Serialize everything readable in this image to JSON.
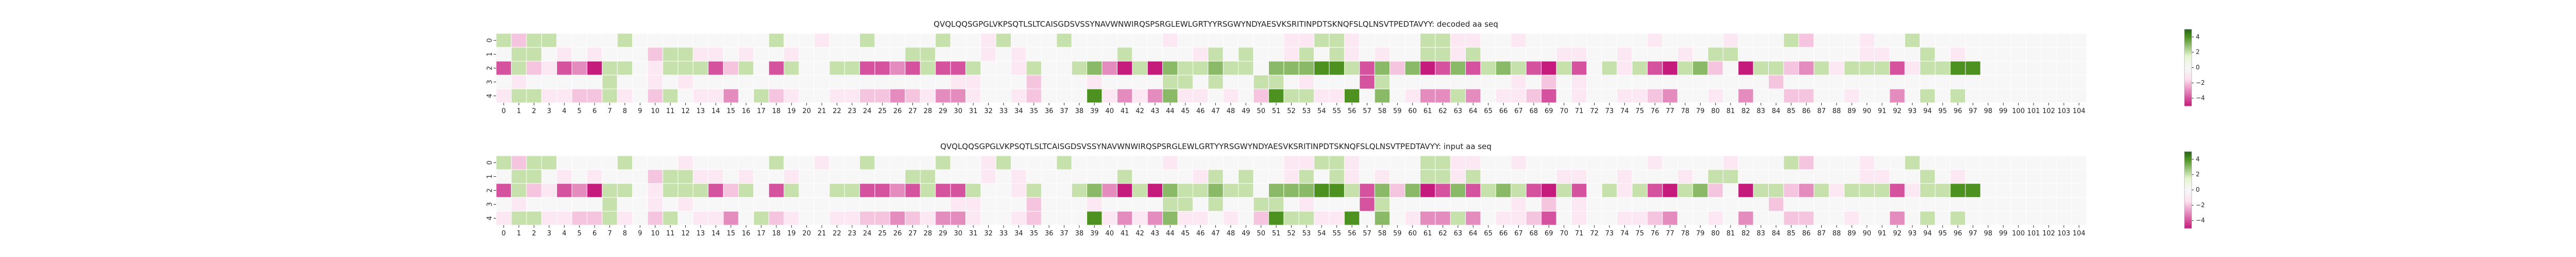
{
  "chart_data": [
    {
      "type": "heatmap",
      "title": "QVQLQQSGPGLVKPSQTLSLTCAISGDSVSSYNAVWNWIRQSPSRGLEWLGRTYYRSGWYNDYAESVKSRITINPDTSKNQFSLQLNSVTPEDTAVYY: decoded aa seq",
      "xlabel": "",
      "ylabel": "",
      "x_ticks": [
        "0",
        "1",
        "2",
        "3",
        "4",
        "5",
        "6",
        "7",
        "8",
        "9",
        "10",
        "11",
        "12",
        "13",
        "14",
        "15",
        "16",
        "17",
        "18",
        "19",
        "20",
        "21",
        "22",
        "23",
        "24",
        "25",
        "26",
        "27",
        "28",
        "29",
        "30",
        "31",
        "32",
        "33",
        "34",
        "35",
        "36",
        "37",
        "38",
        "39",
        "40",
        "41",
        "42",
        "43",
        "44",
        "45",
        "46",
        "47",
        "48",
        "49",
        "50",
        "51",
        "52",
        "53",
        "54",
        "55",
        "56",
        "57",
        "58",
        "59",
        "60",
        "61",
        "62",
        "63",
        "64",
        "65",
        "66",
        "67",
        "68",
        "69",
        "70",
        "71",
        "72",
        "73",
        "74",
        "75",
        "76",
        "77",
        "78",
        "79",
        "80",
        "81",
        "82",
        "83",
        "84",
        "85",
        "86",
        "87",
        "88",
        "89",
        "90",
        "91",
        "92",
        "93",
        "94",
        "95",
        "96",
        "97",
        "98",
        "99",
        "100",
        "101",
        "102",
        "103",
        "104"
      ],
      "y_ticks": [
        "0",
        "1",
        "2",
        "3",
        "4"
      ],
      "colorbar": {
        "ticks": [
          "4",
          "2",
          "0",
          "−2",
          "−4"
        ],
        "range": [
          -5,
          5
        ]
      },
      "rows": [
        [
          2,
          -2,
          2,
          2,
          0,
          0,
          0,
          0,
          2,
          0,
          0,
          0,
          0,
          0,
          0,
          0,
          0,
          0,
          2,
          0,
          0,
          -1,
          0,
          0,
          2,
          0,
          0,
          0,
          0,
          2,
          0,
          0,
          -1,
          2,
          0,
          0,
          0,
          2,
          0,
          0,
          0,
          0,
          0,
          0,
          -1,
          0,
          0,
          0,
          0,
          0,
          0,
          0,
          -1,
          -1,
          2,
          2,
          -1,
          0,
          0,
          0,
          0,
          2,
          2,
          -1,
          -1,
          0,
          0,
          -1,
          0,
          0,
          0,
          0,
          0,
          0,
          0,
          0,
          -1,
          0,
          0,
          0,
          0,
          -1,
          0,
          0,
          0,
          2,
          -2,
          0,
          0,
          0,
          -1,
          0,
          0,
          2,
          0,
          0,
          0,
          0,
          0,
          0,
          0,
          0,
          0,
          0,
          0
        ],
        [
          0,
          2,
          2,
          0,
          -1,
          0,
          -1,
          0,
          0,
          0,
          -2,
          2,
          2,
          -1,
          -1,
          0,
          -1,
          0,
          0,
          -1,
          0,
          0,
          0,
          0,
          0,
          0,
          0,
          2,
          2,
          0,
          0,
          0,
          -1,
          0,
          -1,
          0,
          0,
          0,
          0,
          0,
          0,
          2,
          0,
          0,
          0,
          0,
          -1,
          2,
          0,
          2,
          0,
          0,
          -1,
          2,
          0,
          2,
          -1,
          0,
          -1,
          0,
          0,
          2,
          2,
          -1,
          2,
          0,
          0,
          0,
          0,
          0,
          -1,
          -1,
          0,
          0,
          -1,
          0,
          0,
          0,
          -1,
          0,
          2,
          2,
          0,
          0,
          0,
          0,
          0,
          0,
          0,
          0,
          -1,
          -1,
          0,
          0,
          2,
          0,
          -1,
          0,
          0,
          0,
          0,
          0,
          0,
          0,
          0
        ],
        [
          -4,
          2,
          -2,
          -1,
          -4,
          -3,
          -5,
          2,
          2,
          0,
          -1,
          2,
          2,
          2,
          -4,
          -2,
          2,
          0,
          -4,
          2,
          0,
          0,
          2,
          2,
          -4,
          -4,
          -3,
          -4,
          2,
          -4,
          -4,
          2,
          0,
          0,
          -1,
          2,
          0,
          0,
          2,
          3,
          -3,
          -5,
          2,
          -5,
          3,
          2,
          2,
          3,
          2,
          2,
          0,
          3,
          3,
          3,
          4,
          4,
          2,
          -4,
          3,
          -2,
          3,
          -5,
          -4,
          3,
          -4,
          2,
          3,
          2,
          -4,
          -5,
          2,
          -4,
          0,
          2,
          -1,
          2,
          -4,
          -5,
          2,
          3,
          -2,
          0,
          -5,
          2,
          2,
          -2,
          -3,
          2,
          -1,
          2,
          2,
          2,
          -4,
          -1,
          2,
          2,
          4,
          4,
          0,
          0,
          0,
          0,
          0,
          0,
          0
        ],
        [
          0,
          -1,
          0,
          0,
          0,
          0,
          0,
          2,
          0,
          0,
          -1,
          0,
          -1,
          0,
          0,
          0,
          0,
          0,
          0,
          0,
          0,
          0,
          0,
          0,
          0,
          0,
          0,
          0,
          0,
          0,
          -1,
          -1,
          0,
          0,
          0,
          -2,
          0,
          0,
          0,
          -1,
          0,
          0,
          0,
          0,
          2,
          2,
          0,
          2,
          0,
          0,
          2,
          2,
          0,
          -1,
          0,
          0,
          0,
          -4,
          2,
          0,
          0,
          0,
          0,
          0,
          0,
          0,
          0,
          -1,
          0,
          -2,
          0,
          -1,
          0,
          0,
          0,
          0,
          0,
          0,
          0,
          0,
          0,
          0,
          0,
          0,
          -2,
          0,
          0,
          0,
          0,
          0,
          0,
          0,
          0,
          0,
          0,
          0,
          0,
          0,
          0,
          0,
          0,
          0,
          0,
          0,
          0
        ],
        [
          -1,
          2,
          2,
          -1,
          -1,
          -2,
          -2,
          2,
          -1,
          0,
          -2,
          2,
          0,
          -1,
          -1,
          -3,
          0,
          2,
          -2,
          -1,
          0,
          0,
          -1,
          -1,
          -2,
          -2,
          -3,
          -2,
          -1,
          -3,
          -3,
          -1,
          0,
          0,
          -1,
          -2,
          0,
          0,
          0,
          4,
          -1,
          -3,
          -1,
          -3,
          3,
          -1,
          -1,
          0,
          -1,
          0,
          -2,
          4,
          2,
          2,
          -1,
          -1,
          4,
          0,
          3,
          0,
          -1,
          -3,
          -3,
          2,
          -3,
          0,
          -1,
          -1,
          -2,
          -4,
          0,
          -1,
          0,
          0,
          -1,
          -1,
          -2,
          -3,
          0,
          0,
          -1,
          0,
          -3,
          0,
          0,
          -2,
          -2,
          0,
          0,
          -1,
          0,
          0,
          -3,
          0,
          2,
          0,
          2,
          0,
          0,
          0,
          0,
          0,
          0,
          0,
          0
        ]
      ]
    },
    {
      "type": "heatmap",
      "title": "QVQLQQSGPGLVKPSQTLSLTCAISGDSVSSYNAVWNWIRQSPSRGLEWLGRTYYRSGWYNDYAESVKSRITINPDTSKNQFSLQLNSVTPEDTAVYY: input aa seq",
      "xlabel": "",
      "ylabel": "",
      "x_ticks": [
        "0",
        "1",
        "2",
        "3",
        "4",
        "5",
        "6",
        "7",
        "8",
        "9",
        "10",
        "11",
        "12",
        "13",
        "14",
        "15",
        "16",
        "17",
        "18",
        "19",
        "20",
        "21",
        "22",
        "23",
        "24",
        "25",
        "26",
        "27",
        "28",
        "29",
        "30",
        "31",
        "32",
        "33",
        "34",
        "35",
        "36",
        "37",
        "38",
        "39",
        "40",
        "41",
        "42",
        "43",
        "44",
        "45",
        "46",
        "47",
        "48",
        "49",
        "50",
        "51",
        "52",
        "53",
        "54",
        "55",
        "56",
        "57",
        "58",
        "59",
        "60",
        "61",
        "62",
        "63",
        "64",
        "65",
        "66",
        "67",
        "68",
        "69",
        "70",
        "71",
        "72",
        "73",
        "74",
        "75",
        "76",
        "77",
        "78",
        "79",
        "80",
        "81",
        "82",
        "83",
        "84",
        "85",
        "86",
        "87",
        "88",
        "89",
        "90",
        "91",
        "92",
        "93",
        "94",
        "95",
        "96",
        "97",
        "98",
        "99",
        "100",
        "101",
        "102",
        "103",
        "104"
      ],
      "y_ticks": [
        "0",
        "1",
        "2",
        "3",
        "4"
      ],
      "colorbar": {
        "ticks": [
          "4",
          "2",
          "0",
          "−2",
          "−4"
        ],
        "range": [
          -5,
          5
        ]
      },
      "rows": [
        [
          2,
          -2,
          2,
          2,
          0,
          0,
          0,
          0,
          2,
          0,
          0,
          0,
          -1,
          0,
          0,
          0,
          0,
          0,
          2,
          0,
          0,
          -1,
          0,
          0,
          2,
          0,
          0,
          0,
          0,
          2,
          0,
          0,
          -1,
          2,
          0,
          0,
          0,
          2,
          0,
          0,
          0,
          0,
          0,
          0,
          -1,
          0,
          0,
          0,
          0,
          0,
          0,
          0,
          -1,
          -1,
          2,
          2,
          -1,
          0,
          0,
          0,
          0,
          2,
          2,
          -1,
          -1,
          0,
          0,
          -1,
          0,
          0,
          0,
          0,
          0,
          0,
          0,
          0,
          -1,
          0,
          0,
          0,
          0,
          -1,
          0,
          0,
          0,
          2,
          -2,
          0,
          0,
          0,
          -1,
          0,
          0,
          2,
          0,
          0,
          0,
          0,
          0,
          0,
          0,
          0,
          0,
          0,
          0
        ],
        [
          0,
          2,
          2,
          0,
          -1,
          0,
          -1,
          0,
          0,
          0,
          -2,
          2,
          2,
          -1,
          -1,
          0,
          -1,
          0,
          0,
          -1,
          0,
          0,
          0,
          0,
          0,
          0,
          0,
          2,
          2,
          0,
          0,
          0,
          -1,
          0,
          -1,
          0,
          0,
          0,
          0,
          0,
          0,
          2,
          0,
          0,
          0,
          0,
          -1,
          2,
          0,
          2,
          0,
          0,
          -1,
          2,
          0,
          2,
          -1,
          0,
          -1,
          0,
          0,
          2,
          2,
          -1,
          2,
          0,
          0,
          0,
          0,
          0,
          -1,
          -1,
          0,
          0,
          -1,
          0,
          0,
          0,
          -1,
          0,
          2,
          2,
          0,
          0,
          0,
          0,
          0,
          0,
          0,
          0,
          -1,
          -1,
          0,
          0,
          2,
          0,
          -1,
          0,
          0,
          0,
          0,
          0,
          0,
          0,
          0
        ],
        [
          -4,
          2,
          -2,
          -1,
          -4,
          -3,
          -5,
          2,
          2,
          0,
          -1,
          2,
          2,
          2,
          -4,
          -2,
          2,
          0,
          -4,
          2,
          0,
          0,
          2,
          2,
          -4,
          -4,
          -3,
          -4,
          2,
          -4,
          -4,
          2,
          0,
          0,
          -1,
          2,
          0,
          0,
          2,
          3,
          -3,
          -5,
          2,
          -5,
          3,
          2,
          2,
          3,
          2,
          2,
          0,
          3,
          3,
          3,
          4,
          4,
          2,
          -4,
          3,
          -2,
          3,
          -5,
          -4,
          3,
          -4,
          2,
          3,
          2,
          -4,
          -5,
          2,
          -4,
          0,
          2,
          -1,
          2,
          -4,
          -5,
          2,
          3,
          -2,
          0,
          -5,
          2,
          2,
          -2,
          -3,
          2,
          -1,
          2,
          2,
          2,
          -4,
          -1,
          2,
          2,
          4,
          4,
          0,
          0,
          0,
          0,
          0,
          0,
          0
        ],
        [
          0,
          -1,
          0,
          0,
          0,
          0,
          0,
          2,
          0,
          0,
          -1,
          0,
          -1,
          0,
          0,
          0,
          0,
          0,
          0,
          0,
          0,
          0,
          0,
          0,
          0,
          0,
          0,
          0,
          0,
          0,
          -1,
          -1,
          0,
          0,
          0,
          -2,
          0,
          0,
          0,
          -1,
          0,
          0,
          0,
          0,
          2,
          2,
          0,
          2,
          0,
          0,
          2,
          2,
          0,
          -1,
          0,
          0,
          0,
          -4,
          2,
          0,
          0,
          0,
          0,
          0,
          0,
          0,
          0,
          -1,
          0,
          -2,
          0,
          -1,
          0,
          0,
          0,
          0,
          0,
          0,
          0,
          0,
          0,
          0,
          0,
          0,
          -2,
          0,
          0,
          0,
          0,
          0,
          0,
          0,
          0,
          0,
          0,
          0,
          0,
          0,
          0,
          0,
          0,
          0,
          0,
          0,
          0
        ],
        [
          -1,
          2,
          2,
          -1,
          -1,
          -2,
          -2,
          2,
          -1,
          0,
          -2,
          2,
          0,
          -1,
          -1,
          -3,
          0,
          2,
          -2,
          -1,
          0,
          0,
          -1,
          -1,
          -2,
          -2,
          -3,
          -2,
          -1,
          -3,
          -3,
          -1,
          0,
          0,
          -1,
          -2,
          0,
          0,
          0,
          4,
          -1,
          -3,
          -1,
          -3,
          3,
          -1,
          -1,
          0,
          -1,
          0,
          -2,
          4,
          2,
          2,
          -1,
          -1,
          4,
          0,
          3,
          0,
          -1,
          -3,
          -3,
          2,
          -3,
          0,
          -1,
          -1,
          -2,
          -4,
          0,
          -1,
          0,
          0,
          -1,
          -1,
          -2,
          -3,
          0,
          0,
          -1,
          0,
          -3,
          0,
          0,
          -2,
          -2,
          0,
          0,
          -1,
          0,
          0,
          -3,
          0,
          2,
          0,
          2,
          0,
          0,
          0,
          0,
          0,
          0,
          0,
          0
        ]
      ]
    }
  ],
  "colors": {
    "negative_strong": "#c51b7d",
    "negative_light": "#fde0ef",
    "neutral": "#f7f7f7",
    "positive_light": "#e6f5d0",
    "positive_strong": "#4d9221",
    "positive_darkest": "#276419"
  }
}
